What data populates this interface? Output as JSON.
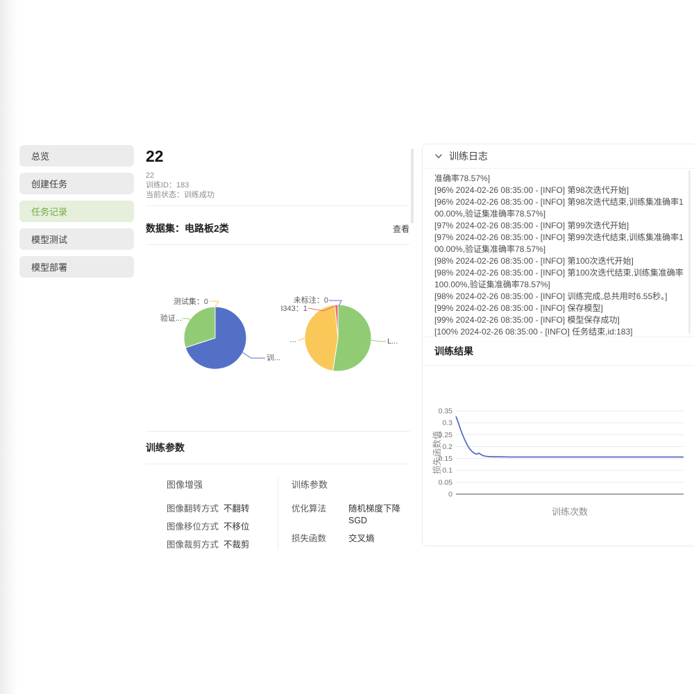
{
  "colors": {
    "blue": "#5470c6",
    "green": "#91cc75",
    "yellow": "#fac858",
    "red": "#ee6666",
    "accent_green": "#76ab47"
  },
  "sidebar": {
    "items": [
      {
        "label": "总览",
        "active": false
      },
      {
        "label": "创建任务",
        "active": false
      },
      {
        "label": "任务记录",
        "active": true
      },
      {
        "label": "模型测试",
        "active": false
      },
      {
        "label": "模型部署",
        "active": false
      }
    ]
  },
  "task": {
    "title": "22",
    "meta_lines": [
      "22",
      "训练ID：183",
      "当前状态：训练成功"
    ]
  },
  "dataset": {
    "header": "数据集：电路板2类",
    "view_label": "查看"
  },
  "params": {
    "header": "训练参数",
    "groups": [
      {
        "title": "图像增强",
        "rows": [
          {
            "label": "图像翻转方式",
            "value": "不翻转"
          },
          {
            "label": "图像移位方式",
            "value": "不移位"
          },
          {
            "label": "图像裁剪方式",
            "value": "不裁剪"
          }
        ]
      },
      {
        "title": "训练参数",
        "rows": [
          {
            "label": "优化算法",
            "value": "随机梯度下降SGD"
          },
          {
            "label": "损失函数",
            "value": "交叉熵"
          }
        ]
      }
    ]
  },
  "log": {
    "header": "训练日志",
    "lines": [
      "准确率78.57%]",
      "[96% 2024-02-26 08:35:00 - [INFO] 第98次迭代开始]",
      "[96% 2024-02-26 08:35:00 - [INFO] 第98次迭代结束,训练集准确率100.00%,验证集准确率78.57%]",
      "[97% 2024-02-26 08:35:00 - [INFO] 第99次迭代开始]",
      "[97% 2024-02-26 08:35:00 - [INFO] 第99次迭代结束,训练集准确率100.00%,验证集准确率78.57%]",
      "[98% 2024-02-26 08:35:00 - [INFO] 第100次迭代开始]",
      "[98% 2024-02-26 08:35:00 - [INFO] 第100次迭代结束,训练集准确率100.00%,验证集准确率78.57%]",
      "[98% 2024-02-26 08:35:00 - [INFO] 训练完成,总共用时6.55秒。]",
      "[99% 2024-02-26 08:35:00 - [INFO] 保存模型]",
      "[99% 2024-02-26 08:35:00 - [INFO] 模型保存成功]",
      "[100% 2024-02-26 08:35:00 - [INFO] 任务结束,id:183]"
    ]
  },
  "results": {
    "header": "训练结果"
  },
  "chart_data": [
    {
      "type": "pie",
      "name": "dataset-split-pie",
      "center": [
        85,
        82
      ],
      "radius": 45,
      "slices": [
        {
          "name": "训练集",
          "display_label": "训...",
          "fraction": 0.7,
          "color": "#5470c6",
          "anchor": "start",
          "label_xy": [
            159,
            114
          ],
          "line_points": [
            [
              120,
              100
            ],
            [
              137,
              111
            ],
            [
              157,
              111
            ]
          ]
        },
        {
          "name": "验证集",
          "display_label": "验证...",
          "fraction": 0.3,
          "color": "#91cc75",
          "anchor": "end",
          "label_xy": [
            37,
            57
          ],
          "line_points": [
            [
              55,
              60
            ],
            [
              46,
              54
            ],
            [
              38,
              54
            ]
          ]
        },
        {
          "name": "测试集",
          "display_label": "测试集：0",
          "value": 0,
          "fraction": 0,
          "color": "#fac858",
          "anchor": "end",
          "label_xy": [
            75,
            33
          ],
          "line_points": [
            [
              85,
              37
            ],
            [
              90,
              29
            ],
            [
              77,
              29
            ]
          ]
        }
      ]
    },
    {
      "type": "pie",
      "name": "dataset-classes-pie",
      "center": [
        82,
        82
      ],
      "radius": 48,
      "slices": [
        {
          "name": "未标注",
          "display_label": "未标注：0",
          "value": 0,
          "fraction": 0,
          "color": "#5470c6",
          "anchor": "end",
          "label_xy": [
            68,
            31
          ],
          "line_points": [
            [
              83,
              36
            ],
            [
              87,
              28
            ],
            [
              69,
              28
            ]
          ]
        },
        {
          "name": "L...",
          "display_label": "L...",
          "fraction": 0.525,
          "color": "#91cc75",
          "anchor": "start",
          "label_xy": [
            153,
            90
          ],
          "line_points": [
            [
              130,
              85
            ],
            [
              142,
              87
            ],
            [
              151,
              87
            ]
          ]
        },
        {
          "name": "...",
          "display_label": "...",
          "fraction": 0.46,
          "color": "#fac858",
          "anchor": "end",
          "label_xy": [
            22,
            88
          ],
          "line_points": [
            [
              34,
              82
            ],
            [
              27,
              85
            ],
            [
              24,
              85
            ]
          ]
        },
        {
          "name": "3343",
          "display_label": "3343：1",
          "value": 1,
          "fraction": 0.015,
          "color": "#ee6666",
          "anchor": "end",
          "label_xy": [
            38,
            43
          ],
          "line_points": [
            [
              78,
              36
            ],
            [
              61,
              43
            ],
            [
              39,
              39
            ]
          ]
        }
      ]
    },
    {
      "type": "line",
      "name": "loss-curve",
      "xlabel": "训练次数",
      "ylabel": "损失函数值",
      "xlim": [
        1,
        100
      ],
      "ylim": [
        0,
        0.35
      ],
      "yticks": [
        0,
        0.05,
        0.1,
        0.15,
        0.2,
        0.25,
        0.3,
        0.35
      ],
      "grid": true,
      "color": "#5470c6",
      "points": [
        [
          1,
          0.327
        ],
        [
          2,
          0.301
        ],
        [
          3,
          0.272
        ],
        [
          4,
          0.247
        ],
        [
          5,
          0.224
        ],
        [
          6,
          0.205
        ],
        [
          7,
          0.19
        ],
        [
          8,
          0.179
        ],
        [
          9,
          0.172
        ],
        [
          10,
          0.168
        ],
        [
          11,
          0.172
        ],
        [
          12,
          0.166
        ],
        [
          13,
          0.161
        ],
        [
          14,
          0.159
        ],
        [
          15,
          0.158
        ],
        [
          17,
          0.157
        ],
        [
          20,
          0.157
        ],
        [
          25,
          0.156
        ],
        [
          30,
          0.156
        ],
        [
          35,
          0.156
        ],
        [
          40,
          0.156
        ],
        [
          45,
          0.156
        ],
        [
          50,
          0.156
        ],
        [
          55,
          0.156
        ],
        [
          60,
          0.156
        ],
        [
          65,
          0.156
        ],
        [
          70,
          0.156
        ],
        [
          75,
          0.156
        ],
        [
          80,
          0.156
        ],
        [
          85,
          0.156
        ],
        [
          90,
          0.156
        ],
        [
          95,
          0.156
        ],
        [
          100,
          0.156
        ]
      ]
    }
  ]
}
